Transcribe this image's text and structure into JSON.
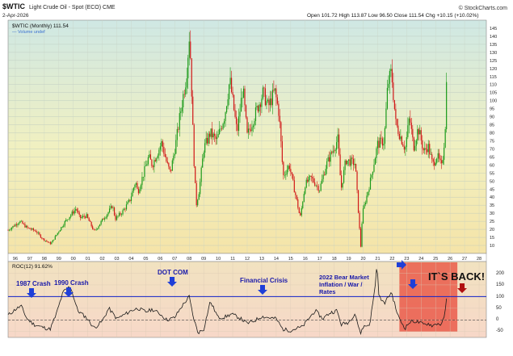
{
  "header": {
    "symbol": "$WTIC",
    "description": "Light Crude Oil - Spot (ECO) CME",
    "date": "2-Apr-2026",
    "quote": "Open 101.72  High 113.87  Low 96.50  Close 111.54  Chg +10.15 (+10.02%)",
    "watermark": "© StockCharts.com",
    "legend_main": "$WTIC (Monthly) 111.54",
    "legend_volume": "— Volume undef",
    "legend_roc": "ROC(12) 91.62%"
  },
  "chart_data": [
    {
      "type": "candlestick",
      "title": "$WTIC (Monthly) 111.54",
      "ylim": [
        5,
        150
      ],
      "yticks": [
        10,
        15,
        20,
        25,
        30,
        35,
        40,
        45,
        50,
        55,
        60,
        65,
        70,
        75,
        80,
        85,
        90,
        95,
        100,
        105,
        110,
        115,
        120,
        125,
        130,
        135,
        140,
        145
      ],
      "xlim": [
        1996,
        2029
      ],
      "xticks": [
        "96",
        "97",
        "98",
        "99",
        "00",
        "01",
        "02",
        "03",
        "04",
        "05",
        "06",
        "07",
        "08",
        "09",
        "10",
        "11",
        "12",
        "13",
        "14",
        "15",
        "16",
        "17",
        "18",
        "19",
        "20",
        "21",
        "22",
        "23",
        "24",
        "25",
        "26",
        "27",
        "28"
      ],
      "colors": {
        "up": "#1a9a1a",
        "down": "#d01818"
      },
      "path_points": [
        [
          1996.0,
          19.5
        ],
        [
          1996.8,
          25.0
        ],
        [
          1997.3,
          21.0
        ],
        [
          1997.9,
          19.0
        ],
        [
          1998.4,
          14.0
        ],
        [
          1998.95,
          11.0
        ],
        [
          1999.5,
          19.0
        ],
        [
          1999.95,
          25.0
        ],
        [
          2000.7,
          33.0
        ],
        [
          2000.95,
          27.0
        ],
        [
          2001.4,
          28.5
        ],
        [
          2001.95,
          18.5
        ],
        [
          2002.6,
          27.0
        ],
        [
          2002.95,
          31.0
        ],
        [
          2003.2,
          35.0
        ],
        [
          2003.4,
          26.5
        ],
        [
          2003.9,
          31.0
        ],
        [
          2004.4,
          38.0
        ],
        [
          2004.8,
          50.0
        ],
        [
          2004.95,
          43.0
        ],
        [
          2005.7,
          65.0
        ],
        [
          2005.95,
          60.0
        ],
        [
          2006.6,
          74.0
        ],
        [
          2006.95,
          61.0
        ],
        [
          2007.2,
          55.0
        ],
        [
          2007.6,
          75.0
        ],
        [
          2007.95,
          96.0
        ],
        [
          2008.3,
          115.0
        ],
        [
          2008.5,
          140.0
        ],
        [
          2008.6,
          125.0
        ],
        [
          2008.8,
          68.0
        ],
        [
          2008.98,
          35.0
        ],
        [
          2009.2,
          45.0
        ],
        [
          2009.5,
          70.0
        ],
        [
          2009.95,
          80.0
        ],
        [
          2010.4,
          75.0
        ],
        [
          2010.95,
          91.0
        ],
        [
          2011.3,
          113.0
        ],
        [
          2011.8,
          80.0
        ],
        [
          2012.2,
          108.0
        ],
        [
          2012.5,
          78.0
        ],
        [
          2012.9,
          88.0
        ],
        [
          2013.6,
          105.0
        ],
        [
          2013.95,
          96.0
        ],
        [
          2014.4,
          106.0
        ],
        [
          2014.7,
          92.0
        ],
        [
          2014.98,
          53.0
        ],
        [
          2015.4,
          60.0
        ],
        [
          2015.98,
          35.0
        ],
        [
          2016.15,
          27.0
        ],
        [
          2016.5,
          48.0
        ],
        [
          2016.9,
          52.0
        ],
        [
          2017.5,
          45.0
        ],
        [
          2017.95,
          60.0
        ],
        [
          2018.75,
          76.0
        ],
        [
          2018.98,
          45.0
        ],
        [
          2019.3,
          63.0
        ],
        [
          2019.95,
          61.0
        ],
        [
          2020.25,
          20.0
        ],
        [
          2020.32,
          7.0
        ],
        [
          2020.45,
          30.0
        ],
        [
          2020.95,
          48.0
        ],
        [
          2021.5,
          73.0
        ],
        [
          2021.95,
          75.0
        ],
        [
          2022.2,
          110.0
        ],
        [
          2022.45,
          118.0
        ],
        [
          2022.75,
          86.0
        ],
        [
          2022.98,
          80.0
        ],
        [
          2023.4,
          70.0
        ],
        [
          2023.7,
          90.0
        ],
        [
          2023.98,
          71.0
        ],
        [
          2024.3,
          83.0
        ],
        [
          2024.7,
          68.0
        ],
        [
          2024.98,
          72.0
        ],
        [
          2025.3,
          60.0
        ],
        [
          2025.6,
          66.0
        ],
        [
          2025.95,
          58.0
        ],
        [
          2026.0,
          65.0
        ],
        [
          2026.15,
          80.0
        ],
        [
          2026.25,
          111.54
        ]
      ]
    },
    {
      "type": "line",
      "title": "ROC(12) 91.62%",
      "ylim": [
        -75,
        250
      ],
      "yticks": [
        -50,
        0,
        50,
        100,
        150,
        200
      ],
      "reference_lines": [
        0,
        100
      ],
      "highlight_range": [
        2023.0,
        2027.0
      ],
      "colors": {
        "line": "#1a1a1a",
        "reference": "#1020c8",
        "highlight": "#e84a3a"
      },
      "series": [
        {
          "name": "",
          "points": [
            [
              1996.0,
              20
            ],
            [
              1996.5,
              45
            ],
            [
              1996.9,
              60
            ],
            [
              1997.3,
              5
            ],
            [
              1997.8,
              -20
            ],
            [
              1998.3,
              -30
            ],
            [
              1998.9,
              -40
            ],
            [
              1999.3,
              20
            ],
            [
              1999.8,
              120
            ],
            [
              2000.3,
              145
            ],
            [
              2000.8,
              40
            ],
            [
              2001.4,
              10
            ],
            [
              2001.95,
              -35
            ],
            [
              2002.5,
              -5
            ],
            [
              2002.95,
              50
            ],
            [
              2003.5,
              5
            ],
            [
              2003.95,
              20
            ],
            [
              2004.5,
              40
            ],
            [
              2004.95,
              50
            ],
            [
              2005.5,
              35
            ],
            [
              2005.95,
              45
            ],
            [
              2006.5,
              25
            ],
            [
              2006.95,
              0
            ],
            [
              2007.5,
              10
            ],
            [
              2007.95,
              55
            ],
            [
              2008.5,
              100
            ],
            [
              2008.75,
              20
            ],
            [
              2009.1,
              -55
            ],
            [
              2009.5,
              -40
            ],
            [
              2009.95,
              80
            ],
            [
              2010.5,
              10
            ],
            [
              2010.95,
              12
            ],
            [
              2011.4,
              25
            ],
            [
              2011.95,
              10
            ],
            [
              2012.5,
              -15
            ],
            [
              2012.95,
              -5
            ],
            [
              2013.5,
              15
            ],
            [
              2013.95,
              10
            ],
            [
              2014.5,
              5
            ],
            [
              2014.95,
              -40
            ],
            [
              2015.5,
              -45
            ],
            [
              2015.95,
              -35
            ],
            [
              2016.3,
              -30
            ],
            [
              2016.8,
              10
            ],
            [
              2017.2,
              40
            ],
            [
              2017.7,
              5
            ],
            [
              2018.2,
              30
            ],
            [
              2018.7,
              40
            ],
            [
              2018.98,
              -20
            ],
            [
              2019.5,
              -10
            ],
            [
              2019.95,
              30
            ],
            [
              2020.3,
              -60
            ],
            [
              2020.5,
              -30
            ],
            [
              2020.95,
              -20
            ],
            [
              2021.3,
              130
            ],
            [
              2021.45,
              240
            ],
            [
              2021.6,
              100
            ],
            [
              2021.95,
              70
            ],
            [
              2022.45,
              120
            ],
            [
              2022.75,
              50
            ],
            [
              2022.98,
              5
            ],
            [
              2023.4,
              -35
            ],
            [
              2023.7,
              -10
            ],
            [
              2023.98,
              -5
            ],
            [
              2024.3,
              -10
            ],
            [
              2024.7,
              -20
            ],
            [
              2024.98,
              -15
            ],
            [
              2025.3,
              -25
            ],
            [
              2025.6,
              -15
            ],
            [
              2025.95,
              -20
            ],
            [
              2026.15,
              35
            ],
            [
              2026.25,
              91.62
            ]
          ]
        }
      ]
    }
  ],
  "annotations": {
    "crash_1987": "1987 Crash",
    "crash_1990": "1990 Crash",
    "dot_com": "DOT COM",
    "financial_crisis": "Financial Crisis",
    "bear_2022_line1": "2022 Bear Market",
    "bear_2022_line2": "Inflation / War /",
    "bear_2022_line3": "Rates",
    "its_back": "IT`S BACK!"
  },
  "roc_axis_labels": [
    "200",
    "150",
    "100",
    "50",
    "0",
    "-50"
  ],
  "colors": {
    "arrow": "#1f3fd8",
    "annotation_text": "#1a1aaa",
    "its_back_text": "#111111"
  }
}
